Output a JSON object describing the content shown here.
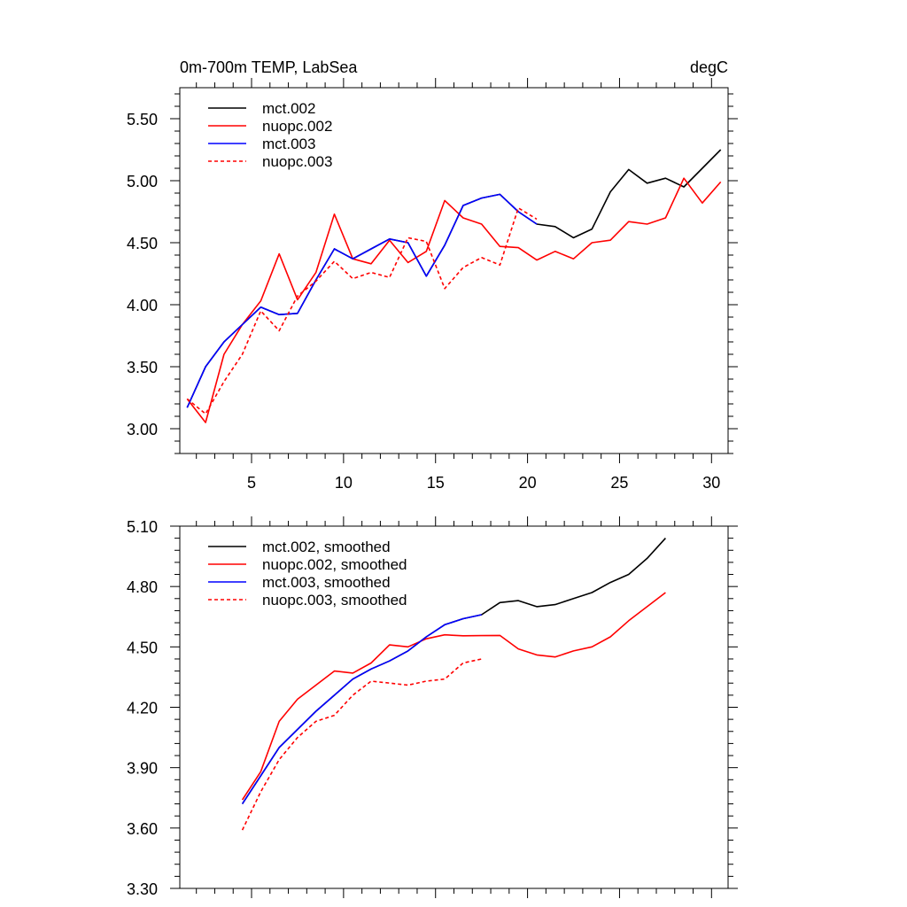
{
  "chart_data": [
    {
      "type": "line",
      "title": "0m-700m TEMP, LabSea",
      "units": "degC",
      "xlim": [
        1.1,
        30.9
      ],
      "ylim": [
        2.8,
        5.75
      ],
      "xticks": [
        5,
        10,
        15,
        20,
        25,
        30
      ],
      "xtick_labels": [
        "5",
        "10",
        "15",
        "20",
        "25",
        "30"
      ],
      "yticks": [
        3.0,
        3.5,
        4.0,
        4.5,
        5.0,
        5.5
      ],
      "ytick_labels": [
        "3.00",
        "3.50",
        "4.00",
        "4.50",
        "5.00",
        "5.50"
      ],
      "legend_position": "top-left",
      "series": [
        {
          "name": "mct.002",
          "color": "#000000",
          "dash": "solid",
          "x": [
            1.5,
            2.5,
            3.5,
            4.5,
            5.5,
            6.5,
            7.5,
            8.5,
            9.5,
            10.5,
            11.5,
            12.5,
            13.5,
            14.5,
            15.5,
            16.5,
            17.5,
            18.5,
            19.5,
            20.5,
            21.5,
            22.5,
            23.5,
            24.5,
            25.5,
            26.5,
            27.5,
            28.5,
            29.5,
            30.5
          ],
          "values": [
            3.17,
            3.5,
            3.7,
            3.84,
            3.98,
            3.92,
            3.93,
            4.2,
            4.45,
            4.37,
            4.45,
            4.53,
            4.5,
            4.23,
            4.48,
            4.8,
            4.86,
            4.89,
            4.75,
            4.65,
            4.63,
            4.54,
            4.61,
            4.91,
            5.09,
            4.98,
            5.02,
            4.95,
            5.1,
            5.25
          ]
        },
        {
          "name": "nuopc.002",
          "color": "#ff0000",
          "dash": "solid",
          "x": [
            1.5,
            2.5,
            3.5,
            4.5,
            5.5,
            6.5,
            7.5,
            8.5,
            9.5,
            10.5,
            11.5,
            12.5,
            13.5,
            14.5,
            15.5,
            16.5,
            17.5,
            18.5,
            19.5,
            20.5,
            21.5,
            22.5,
            23.5,
            24.5,
            25.5,
            26.5,
            27.5,
            28.5,
            29.5,
            30.5
          ],
          "values": [
            3.24,
            3.05,
            3.6,
            3.84,
            4.03,
            4.41,
            4.04,
            4.26,
            4.73,
            4.37,
            4.33,
            4.52,
            4.34,
            4.43,
            4.84,
            4.7,
            4.65,
            4.47,
            4.46,
            4.36,
            4.43,
            4.37,
            4.5,
            4.52,
            4.67,
            4.65,
            4.7,
            5.02,
            4.82,
            4.99
          ]
        },
        {
          "name": "mct.003",
          "color": "#0000ff",
          "dash": "solid",
          "x": [
            1.5,
            2.5,
            3.5,
            4.5,
            5.5,
            6.5,
            7.5,
            8.5,
            9.5,
            10.5,
            11.5,
            12.5,
            13.5,
            14.5,
            15.5,
            16.5,
            17.5,
            18.5,
            19.5,
            20.5
          ],
          "values": [
            3.17,
            3.5,
            3.7,
            3.84,
            3.98,
            3.92,
            3.93,
            4.2,
            4.45,
            4.37,
            4.45,
            4.53,
            4.5,
            4.23,
            4.48,
            4.8,
            4.86,
            4.89,
            4.75,
            4.65
          ]
        },
        {
          "name": "nuopc.003",
          "color": "#ff0000",
          "dash": "dashed",
          "x": [
            1.5,
            2.5,
            3.5,
            4.5,
            5.5,
            6.5,
            7.5,
            8.5,
            9.5,
            10.5,
            11.5,
            12.5,
            13.5,
            14.5,
            15.5,
            16.5,
            17.5,
            18.5,
            19.5,
            20.5
          ],
          "values": [
            3.24,
            3.12,
            3.38,
            3.6,
            3.95,
            3.79,
            4.07,
            4.19,
            4.35,
            4.21,
            4.26,
            4.22,
            4.54,
            4.51,
            4.13,
            4.3,
            4.38,
            4.32,
            4.78,
            4.69
          ]
        }
      ]
    },
    {
      "type": "line",
      "xlim": [
        1.1,
        30.9
      ],
      "ylim": [
        3.3,
        5.1
      ],
      "xticks": [
        5,
        10,
        15,
        20,
        25,
        30
      ],
      "xtick_labels": [],
      "yticks": [
        3.3,
        3.6,
        3.9,
        4.2,
        4.5,
        4.8,
        5.1
      ],
      "ytick_labels": [
        "3.30",
        "3.60",
        "3.90",
        "4.20",
        "4.50",
        "4.80",
        "5.10"
      ],
      "legend_position": "top-left",
      "series": [
        {
          "name": "mct.002, smoothed",
          "color": "#000000",
          "dash": "solid",
          "x": [
            4.5,
            5.5,
            6.5,
            7.5,
            8.5,
            9.5,
            10.5,
            11.5,
            12.5,
            13.5,
            14.5,
            15.5,
            16.5,
            17.5,
            18.5,
            19.5,
            20.5,
            21.5,
            22.5,
            23.5,
            24.5,
            25.5,
            26.5,
            27.5
          ],
          "values": [
            3.72,
            3.86,
            4.0,
            4.09,
            4.18,
            4.26,
            4.34,
            4.39,
            4.43,
            4.48,
            4.55,
            4.61,
            4.64,
            4.66,
            4.72,
            4.73,
            4.7,
            4.71,
            4.74,
            4.77,
            4.82,
            4.86,
            4.94,
            5.04
          ]
        },
        {
          "name": "nuopc.002, smoothed",
          "color": "#ff0000",
          "dash": "solid",
          "x": [
            4.5,
            5.5,
            6.5,
            7.5,
            8.5,
            9.5,
            10.5,
            11.5,
            12.5,
            13.5,
            14.5,
            15.5,
            16.5,
            17.5,
            18.5,
            19.5,
            20.5,
            21.5,
            22.5,
            23.5,
            24.5,
            25.5,
            26.5,
            27.5
          ],
          "values": [
            3.74,
            3.88,
            4.13,
            4.24,
            4.31,
            4.38,
            4.37,
            4.42,
            4.51,
            4.5,
            4.54,
            4.56,
            4.555,
            4.556,
            4.557,
            4.49,
            4.46,
            4.45,
            4.48,
            4.5,
            4.55,
            4.63,
            4.7,
            4.77
          ]
        },
        {
          "name": "mct.003, smoothed",
          "color": "#0000ff",
          "dash": "solid",
          "x": [
            4.5,
            5.5,
            6.5,
            7.5,
            8.5,
            9.5,
            10.5,
            11.5,
            12.5,
            13.5,
            14.5,
            15.5,
            16.5,
            17.5
          ],
          "values": [
            3.72,
            3.86,
            4.0,
            4.09,
            4.18,
            4.26,
            4.34,
            4.39,
            4.43,
            4.48,
            4.55,
            4.61,
            4.64,
            4.66
          ]
        },
        {
          "name": "nuopc.003, smoothed",
          "color": "#ff0000",
          "dash": "dashed",
          "x": [
            4.5,
            5.5,
            6.5,
            7.5,
            8.5,
            9.5,
            10.5,
            11.5,
            12.5,
            13.5,
            14.5,
            15.5,
            16.5,
            17.5
          ],
          "values": [
            3.59,
            3.78,
            3.94,
            4.05,
            4.13,
            4.16,
            4.26,
            4.33,
            4.32,
            4.31,
            4.33,
            4.34,
            4.42,
            4.44
          ]
        }
      ]
    }
  ]
}
